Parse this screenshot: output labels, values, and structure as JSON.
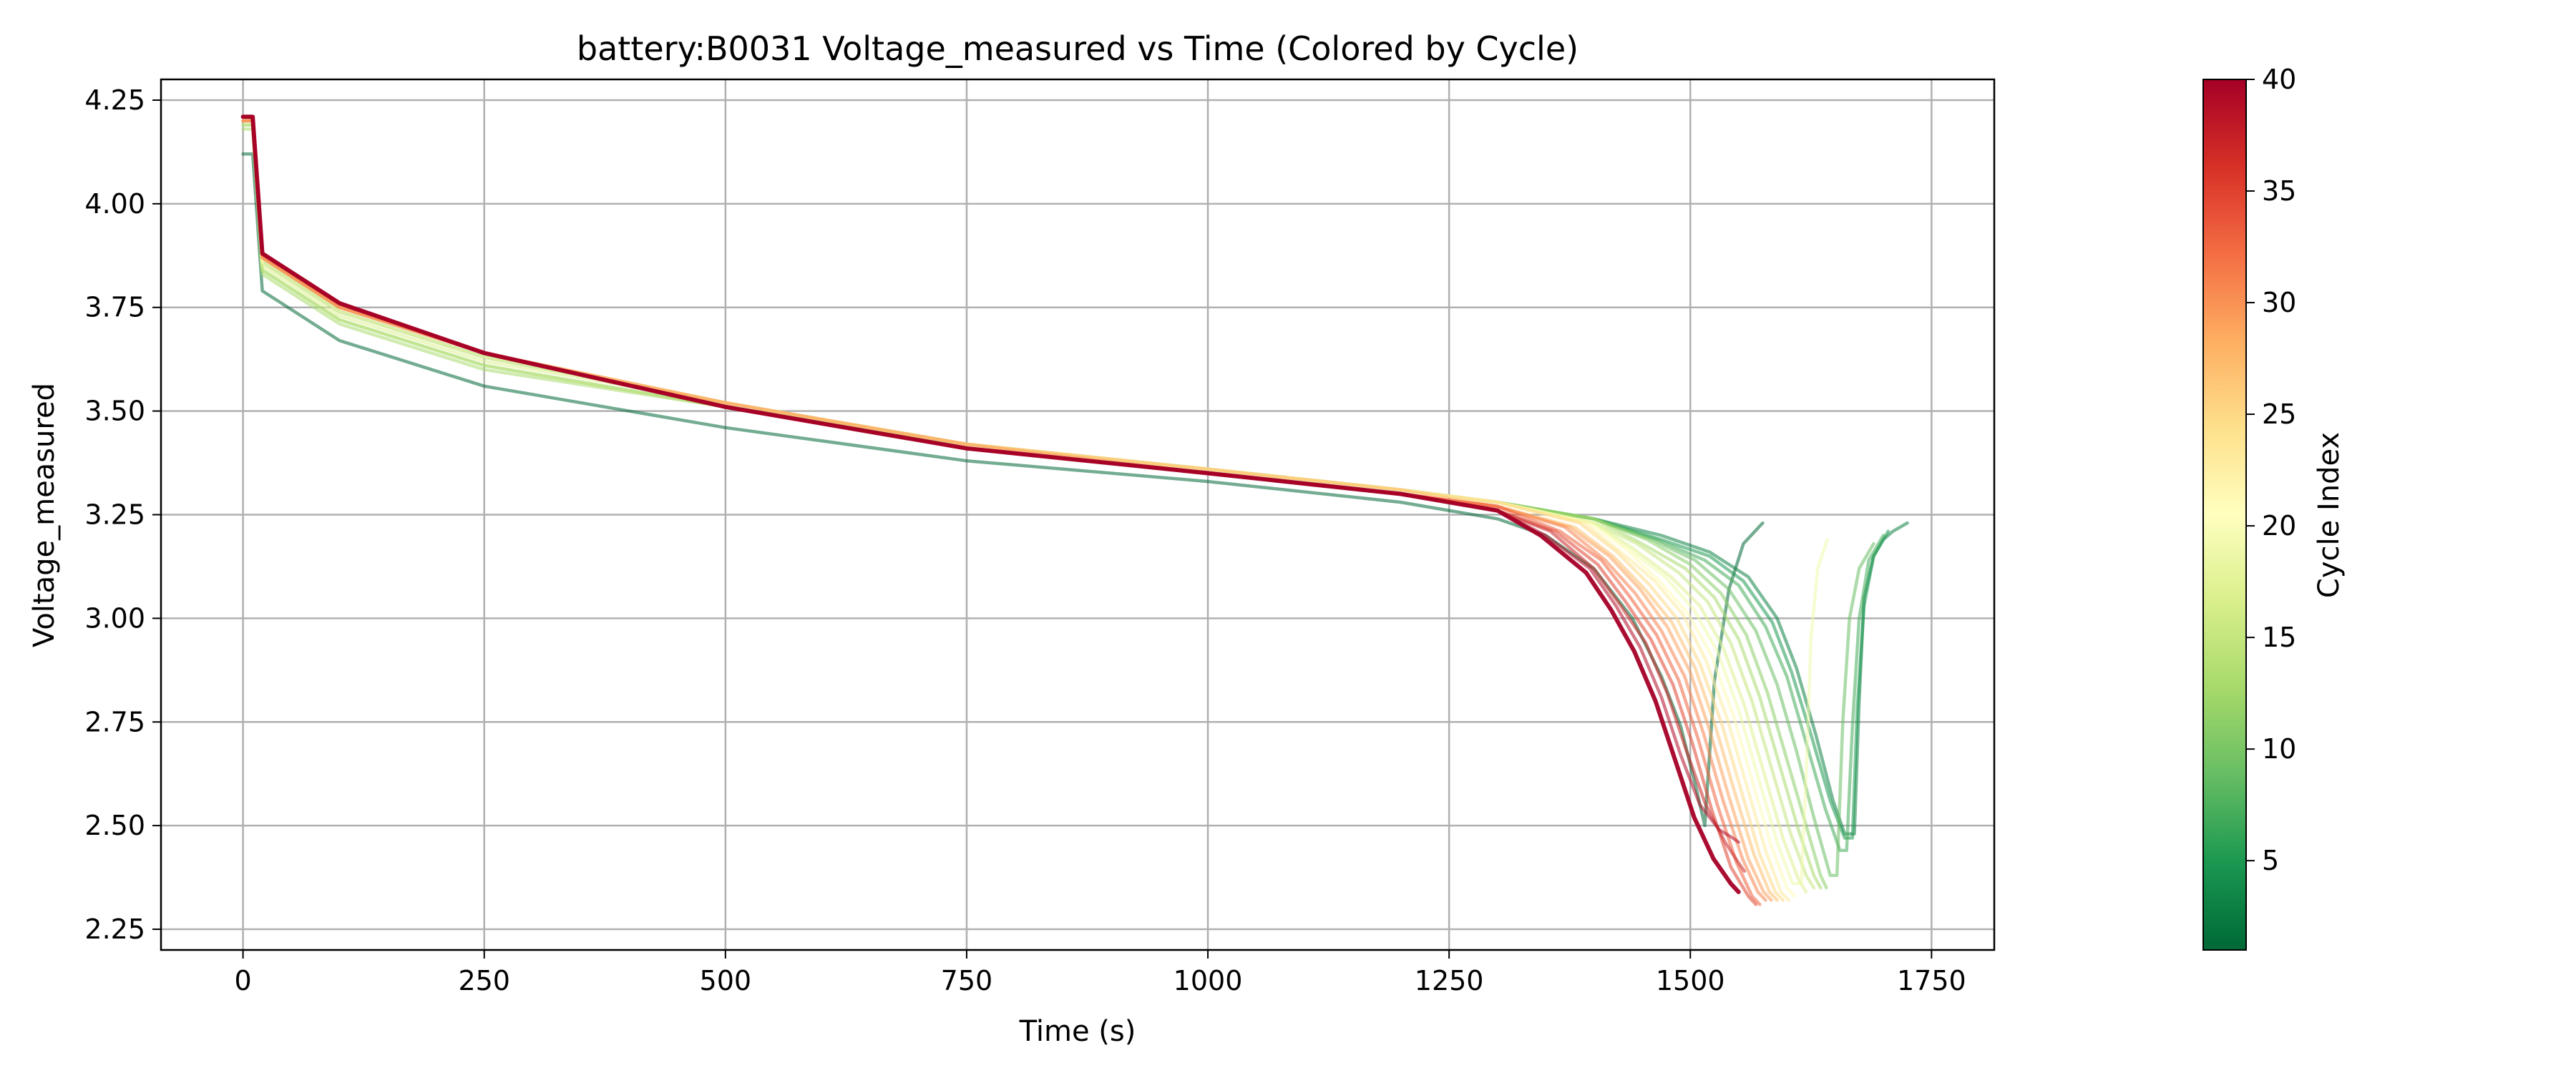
{
  "chart_data": {
    "type": "line",
    "title": "battery:B0031 Voltage_measured vs Time (Colored by Cycle)",
    "xlabel": "Time (s)",
    "ylabel": "Voltage_measured",
    "xlim": [
      -85,
      1815
    ],
    "ylim": [
      2.2,
      4.3
    ],
    "xticks": [
      0,
      250,
      500,
      750,
      1000,
      1250,
      1500,
      1750
    ],
    "xtick_labels": [
      "0",
      "250",
      "500",
      "750",
      "1000",
      "1250",
      "1500",
      "1750"
    ],
    "yticks": [
      2.25,
      2.5,
      2.75,
      3.0,
      3.25,
      3.5,
      3.75,
      4.0,
      4.25
    ],
    "ytick_labels": [
      "2.25",
      "2.50",
      "2.75",
      "3.00",
      "3.25",
      "3.50",
      "3.75",
      "4.00",
      "4.25"
    ],
    "grid": true,
    "colormap": {
      "name": "RdYlGn_r",
      "label": "Cycle Index",
      "range": [
        1,
        40
      ],
      "ticks": [
        5,
        10,
        15,
        20,
        25,
        30,
        35,
        40
      ],
      "tick_labels": [
        "5",
        "10",
        "15",
        "20",
        "25",
        "30",
        "35",
        "40"
      ],
      "stops": [
        "#006837",
        "#1a9850",
        "#66bd63",
        "#a6d96a",
        "#d9ef8b",
        "#ffffbf",
        "#fee08b",
        "#fdae61",
        "#f46d43",
        "#d73027",
        "#a50026"
      ]
    },
    "series": [
      {
        "cycle": 1,
        "x": [
          0,
          10,
          20,
          100,
          250,
          500,
          750,
          1000,
          1200,
          1300,
          1350,
          1400,
          1440,
          1470,
          1490,
          1505,
          1515,
          1525,
          1540,
          1555,
          1575
        ],
        "y": [
          4.12,
          4.12,
          3.79,
          3.67,
          3.56,
          3.46,
          3.38,
          3.33,
          3.28,
          3.24,
          3.2,
          3.12,
          3.0,
          2.86,
          2.74,
          2.6,
          2.5,
          2.85,
          3.07,
          3.18,
          3.23
        ]
      },
      {
        "cycle": 3,
        "x": [
          0,
          10,
          20,
          100,
          250,
          500,
          750,
          1000,
          1200,
          1300,
          1400,
          1470,
          1520,
          1560,
          1590,
          1610,
          1630,
          1648,
          1660,
          1670,
          1675,
          1680,
          1690,
          1700,
          1710,
          1725
        ],
        "y": [
          4.2,
          4.2,
          3.86,
          3.74,
          3.63,
          3.52,
          3.42,
          3.36,
          3.31,
          3.28,
          3.24,
          3.2,
          3.16,
          3.1,
          3.0,
          2.88,
          2.72,
          2.56,
          2.48,
          2.48,
          2.8,
          3.05,
          3.15,
          3.19,
          3.21,
          3.23
        ]
      },
      {
        "cycle": 5,
        "x": [
          0,
          10,
          20,
          100,
          250,
          500,
          750,
          1000,
          1200,
          1300,
          1400,
          1470,
          1520,
          1555,
          1585,
          1605,
          1625,
          1645,
          1660,
          1668,
          1673,
          1680,
          1690,
          1705
        ],
        "y": [
          4.2,
          4.2,
          3.86,
          3.74,
          3.63,
          3.52,
          3.42,
          3.36,
          3.31,
          3.28,
          3.24,
          3.19,
          3.15,
          3.09,
          2.99,
          2.87,
          2.72,
          2.56,
          2.47,
          2.47,
          2.78,
          3.03,
          3.15,
          3.21
        ]
      },
      {
        "cycle": 7,
        "x": [
          0,
          10,
          20,
          100,
          250,
          500,
          750,
          1000,
          1200,
          1300,
          1400,
          1465,
          1515,
          1550,
          1578,
          1600,
          1620,
          1640,
          1655,
          1662,
          1668,
          1675,
          1685,
          1700
        ],
        "y": [
          4.2,
          4.2,
          3.86,
          3.74,
          3.63,
          3.52,
          3.42,
          3.36,
          3.31,
          3.28,
          3.24,
          3.19,
          3.14,
          3.08,
          2.98,
          2.86,
          2.7,
          2.54,
          2.44,
          2.44,
          2.74,
          3.0,
          3.14,
          3.2
        ]
      },
      {
        "cycle": 9,
        "x": [
          0,
          10,
          20,
          100,
          250,
          500,
          750,
          1000,
          1200,
          1300,
          1400,
          1460,
          1505,
          1540,
          1568,
          1590,
          1610,
          1628,
          1645,
          1652,
          1658,
          1665,
          1675,
          1690
        ],
        "y": [
          4.2,
          4.2,
          3.86,
          3.74,
          3.63,
          3.52,
          3.42,
          3.36,
          3.31,
          3.28,
          3.24,
          3.19,
          3.14,
          3.07,
          2.97,
          2.84,
          2.68,
          2.52,
          2.38,
          2.38,
          2.75,
          3.0,
          3.12,
          3.18
        ]
      },
      {
        "cycle": 11,
        "x": [
          0,
          10,
          20,
          100,
          250,
          500,
          750,
          1000,
          1200,
          1300,
          1400,
          1455,
          1500,
          1532,
          1558,
          1580,
          1600,
          1620,
          1635,
          1641
        ],
        "y": [
          4.19,
          4.19,
          3.84,
          3.72,
          3.61,
          3.51,
          3.42,
          3.36,
          3.31,
          3.28,
          3.24,
          3.19,
          3.13,
          3.06,
          2.96,
          2.82,
          2.66,
          2.5,
          2.38,
          2.35
        ]
      },
      {
        "cycle": 13,
        "x": [
          0,
          10,
          20,
          100,
          250,
          500,
          750,
          1000,
          1200,
          1300,
          1400,
          1450,
          1495,
          1525,
          1550,
          1572,
          1592,
          1612,
          1628,
          1635
        ],
        "y": [
          4.18,
          4.18,
          3.83,
          3.71,
          3.6,
          3.51,
          3.42,
          3.36,
          3.31,
          3.28,
          3.24,
          3.18,
          3.12,
          3.05,
          2.95,
          2.81,
          2.65,
          2.49,
          2.38,
          2.35
        ]
      },
      {
        "cycle": 15,
        "x": [
          0,
          10,
          20,
          100,
          250,
          500,
          750,
          1000,
          1200,
          1300,
          1400,
          1445,
          1488,
          1518,
          1542,
          1564,
          1584,
          1604,
          1620,
          1628
        ],
        "y": [
          4.19,
          4.19,
          3.84,
          3.72,
          3.61,
          3.51,
          3.42,
          3.36,
          3.31,
          3.28,
          3.23,
          3.18,
          3.11,
          3.04,
          2.94,
          2.8,
          2.64,
          2.48,
          2.38,
          2.35
        ]
      },
      {
        "cycle": 17,
        "x": [
          0,
          10,
          20,
          100,
          250,
          500,
          750,
          1000,
          1200,
          1300,
          1400,
          1440,
          1480,
          1510,
          1534,
          1556,
          1576,
          1596,
          1612,
          1620
        ],
        "y": [
          4.2,
          4.2,
          3.85,
          3.73,
          3.62,
          3.52,
          3.42,
          3.36,
          3.31,
          3.28,
          3.23,
          3.17,
          3.1,
          3.03,
          2.93,
          2.79,
          2.63,
          2.47,
          2.37,
          2.34
        ]
      },
      {
        "cycle": 19,
        "x": [
          0,
          10,
          20,
          100,
          250,
          500,
          750,
          1000,
          1200,
          1300,
          1400,
          1435,
          1474,
          1504,
          1528,
          1550,
          1570,
          1590,
          1606,
          1615,
          1620,
          1625,
          1632,
          1642
        ],
        "y": [
          4.2,
          4.2,
          3.86,
          3.74,
          3.63,
          3.52,
          3.42,
          3.36,
          3.31,
          3.28,
          3.23,
          3.17,
          3.1,
          3.02,
          2.92,
          2.78,
          2.62,
          2.46,
          2.36,
          2.36,
          2.62,
          2.95,
          3.12,
          3.19
        ]
      },
      {
        "cycle": 21,
        "x": [
          0,
          10,
          20,
          100,
          250,
          500,
          750,
          1000,
          1200,
          1300,
          1395,
          1432,
          1468,
          1498,
          1522,
          1544,
          1564,
          1584,
          1600,
          1608
        ],
        "y": [
          4.2,
          4.2,
          3.86,
          3.74,
          3.63,
          3.52,
          3.42,
          3.36,
          3.31,
          3.28,
          3.23,
          3.17,
          3.09,
          3.01,
          2.91,
          2.77,
          2.61,
          2.45,
          2.35,
          2.33
        ]
      },
      {
        "cycle": 23,
        "x": [
          0,
          10,
          20,
          100,
          250,
          500,
          750,
          1000,
          1200,
          1300,
          1390,
          1428,
          1463,
          1492,
          1516,
          1538,
          1558,
          1578,
          1594,
          1602
        ],
        "y": [
          4.2,
          4.2,
          3.87,
          3.75,
          3.64,
          3.52,
          3.42,
          3.36,
          3.31,
          3.28,
          3.23,
          3.16,
          3.09,
          3.01,
          2.9,
          2.76,
          2.6,
          2.44,
          2.34,
          2.32
        ]
      },
      {
        "cycle": 25,
        "x": [
          0,
          10,
          20,
          100,
          250,
          500,
          750,
          1000,
          1200,
          1300,
          1385,
          1424,
          1458,
          1486,
          1510,
          1532,
          1552,
          1572,
          1588,
          1596
        ],
        "y": [
          4.2,
          4.2,
          3.87,
          3.75,
          3.64,
          3.52,
          3.42,
          3.36,
          3.31,
          3.28,
          3.23,
          3.16,
          3.08,
          3.0,
          2.89,
          2.75,
          2.59,
          2.43,
          2.34,
          2.32
        ]
      },
      {
        "cycle": 27,
        "x": [
          0,
          10,
          20,
          100,
          250,
          500,
          750,
          1000,
          1200,
          1300,
          1380,
          1420,
          1453,
          1481,
          1505,
          1526,
          1546,
          1566,
          1582,
          1590
        ],
        "y": [
          4.2,
          4.2,
          3.87,
          3.75,
          3.64,
          3.52,
          3.42,
          3.36,
          3.31,
          3.27,
          3.22,
          3.15,
          3.07,
          2.99,
          2.88,
          2.74,
          2.58,
          2.43,
          2.34,
          2.32
        ]
      },
      {
        "cycle": 29,
        "x": [
          0,
          10,
          20,
          100,
          250,
          500,
          750,
          1000,
          1200,
          1300,
          1375,
          1416,
          1448,
          1476,
          1500,
          1520,
          1540,
          1560,
          1576,
          1584
        ],
        "y": [
          4.2,
          4.2,
          3.87,
          3.75,
          3.64,
          3.52,
          3.42,
          3.35,
          3.3,
          3.27,
          3.22,
          3.15,
          3.07,
          2.98,
          2.87,
          2.73,
          2.57,
          2.42,
          2.34,
          2.32
        ]
      },
      {
        "cycle": 31,
        "x": [
          0,
          10,
          20,
          100,
          250,
          500,
          750,
          1000,
          1200,
          1300,
          1370,
          1412,
          1443,
          1470,
          1494,
          1514,
          1534,
          1554,
          1570,
          1578
        ],
        "y": [
          4.2,
          4.2,
          3.87,
          3.75,
          3.64,
          3.51,
          3.41,
          3.35,
          3.3,
          3.27,
          3.22,
          3.14,
          3.06,
          2.97,
          2.86,
          2.72,
          2.56,
          2.42,
          2.34,
          2.32
        ]
      },
      {
        "cycle": 33,
        "x": [
          0,
          10,
          20,
          100,
          250,
          500,
          750,
          1000,
          1200,
          1300,
          1365,
          1408,
          1438,
          1465,
          1488,
          1508,
          1528,
          1548,
          1564,
          1572
        ],
        "y": [
          4.21,
          4.21,
          3.88,
          3.76,
          3.64,
          3.51,
          3.41,
          3.35,
          3.3,
          3.27,
          3.21,
          3.14,
          3.05,
          2.96,
          2.85,
          2.71,
          2.55,
          2.41,
          2.33,
          2.31
        ]
      },
      {
        "cycle": 35,
        "x": [
          0,
          10,
          20,
          100,
          250,
          500,
          750,
          1000,
          1200,
          1300,
          1360,
          1404,
          1433,
          1459,
          1482,
          1502,
          1522,
          1542,
          1560,
          1568
        ],
        "y": [
          4.21,
          4.21,
          3.88,
          3.76,
          3.64,
          3.51,
          3.41,
          3.35,
          3.3,
          3.26,
          3.21,
          3.13,
          3.04,
          2.95,
          2.84,
          2.7,
          2.54,
          2.4,
          2.33,
          2.31
        ]
      },
      {
        "cycle": 37,
        "x": [
          0,
          10,
          20,
          100,
          250,
          500,
          750,
          1000,
          1200,
          1300,
          1355,
          1400,
          1428,
          1454,
          1476,
          1496,
          1516,
          1536,
          1550,
          1556
        ],
        "y": [
          4.21,
          4.21,
          3.88,
          3.76,
          3.64,
          3.51,
          3.41,
          3.35,
          3.3,
          3.26,
          3.21,
          3.12,
          3.03,
          2.94,
          2.82,
          2.68,
          2.55,
          2.46,
          2.41,
          2.39
        ]
      },
      {
        "cycle": 39,
        "x": [
          0,
          10,
          20,
          100,
          250,
          500,
          750,
          1000,
          1200,
          1300,
          1350,
          1396,
          1423,
          1448,
          1470,
          1490,
          1510,
          1530,
          1544,
          1550
        ],
        "y": [
          4.21,
          4.21,
          3.88,
          3.76,
          3.64,
          3.51,
          3.41,
          3.35,
          3.3,
          3.26,
          3.2,
          3.12,
          3.03,
          2.93,
          2.81,
          2.67,
          2.55,
          2.49,
          2.47,
          2.46
        ]
      },
      {
        "cycle": 40,
        "x": [
          0,
          10,
          20,
          100,
          250,
          500,
          750,
          1000,
          1200,
          1300,
          1345,
          1392,
          1418,
          1442,
          1464,
          1484,
          1504,
          1524,
          1542,
          1550
        ],
        "y": [
          4.21,
          4.21,
          3.88,
          3.76,
          3.64,
          3.51,
          3.41,
          3.35,
          3.3,
          3.26,
          3.2,
          3.11,
          3.02,
          2.92,
          2.8,
          2.66,
          2.52,
          2.42,
          2.36,
          2.34
        ]
      }
    ]
  }
}
